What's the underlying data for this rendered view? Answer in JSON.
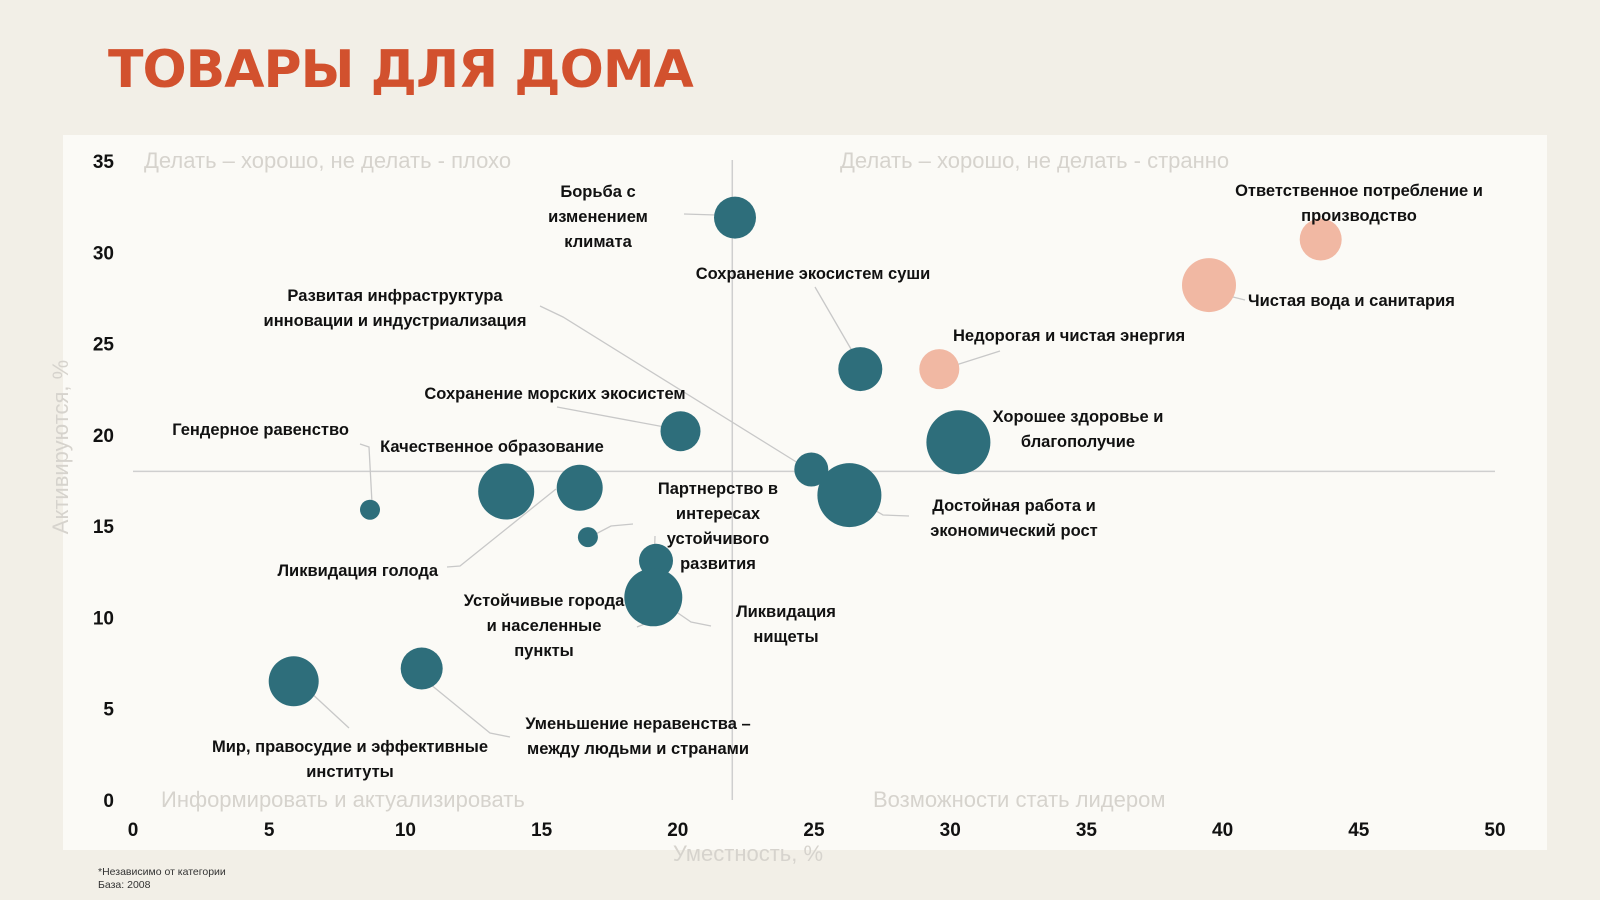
{
  "title": "ТОВАРЫ ДЛЯ ДОМА",
  "footnote": {
    "line1": "*Независимо от категории",
    "line2": "База: 2008"
  },
  "colors": {
    "title": "#d2512e",
    "teal": "#2e6e7b",
    "peach": "#f1b8a3"
  },
  "chart_data": {
    "type": "scatter",
    "xlabel": "Уместность, %",
    "ylabel": "Активируются, %",
    "xlim": [
      0,
      50
    ],
    "ylim": [
      0,
      35
    ],
    "xticks": [
      0,
      5,
      10,
      15,
      20,
      25,
      30,
      35,
      40,
      45,
      50
    ],
    "yticks": [
      0,
      5,
      10,
      15,
      20,
      25,
      30,
      35
    ],
    "divider": {
      "x": 22,
      "y": 18
    },
    "quadrants": {
      "top_left": "Делать – хорошо, не делать - плохо",
      "top_right": "Делать – хорошо, не делать - странно",
      "bottom_left": "Информировать и актуализировать",
      "bottom_right": "Возможности стать лидером"
    },
    "points": [
      {
        "label": [
          "Борьба с",
          "изменением",
          "климата"
        ],
        "x": 22.1,
        "y": 31.9,
        "size": 21,
        "color": "teal"
      },
      {
        "label": [
          "Ответственное потребление и",
          "производство"
        ],
        "x": 43.6,
        "y": 30.7,
        "size": 21,
        "color": "peach"
      },
      {
        "label": [
          "Чистая вода и санитария"
        ],
        "x": 39.5,
        "y": 28.2,
        "size": 27,
        "color": "peach"
      },
      {
        "label": [
          "Сохранение экосистем суши"
        ],
        "x": 26.7,
        "y": 23.6,
        "size": 22,
        "color": "teal"
      },
      {
        "label": [
          "Недорогая и чистая энергия"
        ],
        "x": 29.6,
        "y": 23.6,
        "size": 20,
        "color": "peach"
      },
      {
        "label": [
          "Развитая инфраструктура",
          "инновации и индустриализация"
        ],
        "x": 24.9,
        "y": 18.1,
        "size": 17,
        "color": "teal"
      },
      {
        "label": [
          "Сохранение морских экосистем"
        ],
        "x": 20.1,
        "y": 20.2,
        "size": 20,
        "color": "teal"
      },
      {
        "label": [
          "Хорошее здоровье и",
          "благополучие"
        ],
        "x": 30.3,
        "y": 19.6,
        "size": 32,
        "color": "teal"
      },
      {
        "label": [
          "Гендерное равенство"
        ],
        "x": 8.7,
        "y": 15.9,
        "size": 10,
        "color": "teal"
      },
      {
        "label": [
          "Качественное образование"
        ],
        "x": 16.4,
        "y": 17.1,
        "size": 23,
        "color": "teal"
      },
      {
        "label": [
          "Ликвидация голода"
        ],
        "x": 13.7,
        "y": 16.9,
        "size": 28,
        "color": "teal"
      },
      {
        "label": [
          "Достойная работа и",
          "экономический рост"
        ],
        "x": 26.3,
        "y": 16.7,
        "size": 32,
        "color": "teal"
      },
      {
        "label": [
          "Партнерство в",
          "интересах",
          "устойчивого",
          "развития"
        ],
        "x": 16.7,
        "y": 14.4,
        "size": 10,
        "color": "teal"
      },
      {
        "label": [
          "Ликвидация",
          "нищеты"
        ],
        "x": 19.2,
        "y": 13.1,
        "size": 17,
        "color": "teal"
      },
      {
        "label": [
          "Устойчивые города",
          "и населенные",
          "пункты"
        ],
        "x": 19.1,
        "y": 11.1,
        "size": 29,
        "color": "teal"
      },
      {
        "label": [
          "Уменьшение неравенства –",
          "между людьми и странами"
        ],
        "x": 10.6,
        "y": 7.2,
        "size": 21,
        "color": "teal"
      },
      {
        "label": [
          "Мир, правосудие и эффективные",
          "институты"
        ],
        "x": 5.9,
        "y": 6.5,
        "size": 25,
        "color": "teal"
      }
    ]
  }
}
